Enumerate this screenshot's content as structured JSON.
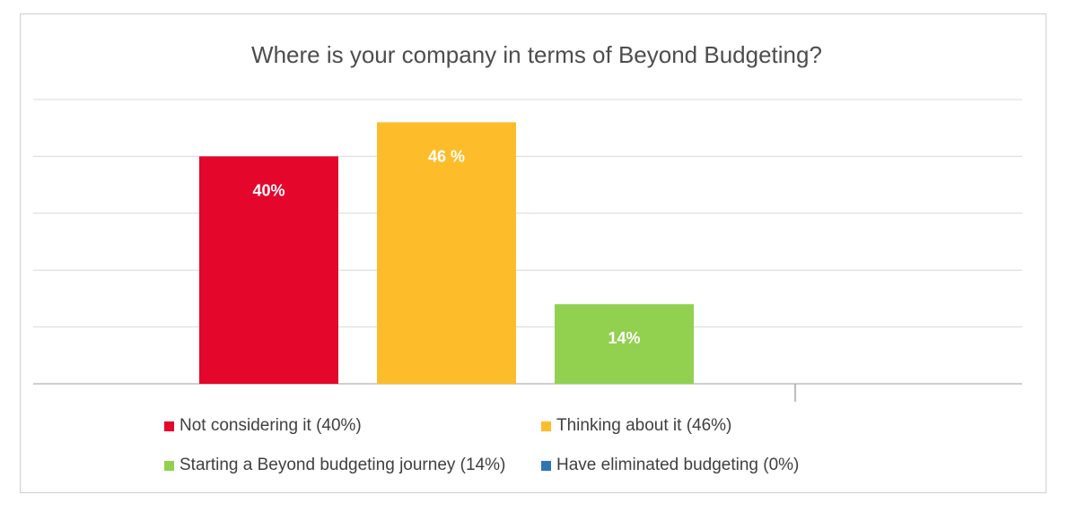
{
  "chart_data": {
    "type": "bar",
    "title": "Where is your company in terms of Beyond Budgeting?",
    "xlabel": "",
    "ylabel": "",
    "ylim": [
      0,
      50
    ],
    "grid": true,
    "legend_position": "bottom",
    "categories": [
      "Not considering it (40%)",
      "Thinking about it (46%)",
      "Starting a Beyond budgeting journey (14%)",
      "Have eliminated budgeting (0%)"
    ],
    "values": [
      40,
      46,
      14,
      0
    ],
    "data_labels": [
      "40%",
      "46 %",
      "14%",
      ""
    ],
    "colors": [
      "#e4062b",
      "#fdbd2b",
      "#92d050",
      "#2e75b6"
    ]
  }
}
